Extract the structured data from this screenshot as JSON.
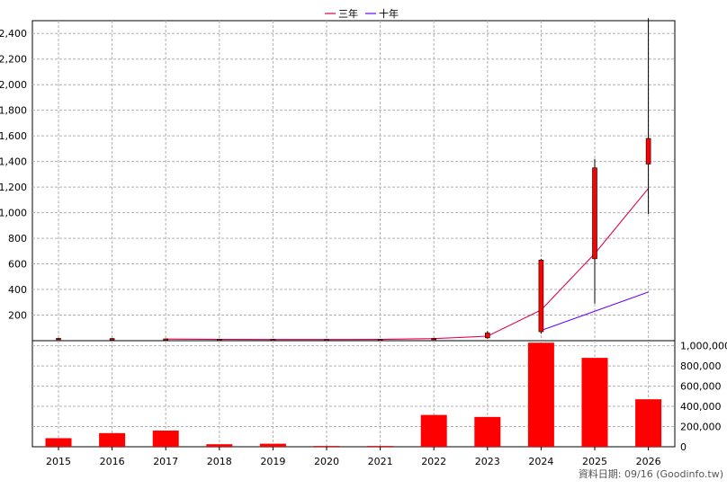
{
  "legend": {
    "items": [
      {
        "label": "三年",
        "color": "#e0004d"
      },
      {
        "label": "十年",
        "color": "#6a00ff"
      }
    ]
  },
  "footer": {
    "text": "資料日期: 09/16  (Goodinfo.tw)"
  },
  "colors": {
    "candle_up": "#ff0000",
    "bar": "#ff0000",
    "grid": "#b0b0b0",
    "wick": "#000000"
  },
  "chart_data": [
    {
      "type": "candlestick",
      "x": [
        "2015",
        "2016",
        "2017",
        "2018",
        "2019",
        "2020",
        "2021",
        "2022",
        "2023",
        "2024",
        "2025",
        "2026"
      ],
      "ylim": [
        0,
        2500
      ],
      "y_ticks": [
        200,
        400,
        600,
        800,
        1000,
        1200,
        1400,
        1600,
        1800,
        2000,
        2200,
        2400
      ],
      "y_tick_labels": [
        "200",
        "400",
        "600",
        "800",
        "1,000",
        "1,200",
        "1,400",
        "1,600",
        "1,800",
        "2,000",
        "2,200",
        "2,400"
      ],
      "ohlc": [
        {
          "x": "2015",
          "open": 15,
          "high": 22,
          "low": 12,
          "close": 18
        },
        {
          "x": "2016",
          "open": 16,
          "high": 20,
          "low": 13,
          "close": 17
        },
        {
          "x": "2017",
          "open": 13,
          "high": 16,
          "low": 11,
          "close": 14
        },
        {
          "x": "2018",
          "open": 10,
          "high": 13,
          "low": 8,
          "close": 11
        },
        {
          "x": "2019",
          "open": 9,
          "high": 12,
          "low": 7,
          "close": 10
        },
        {
          "x": "2020",
          "open": 8,
          "high": 11,
          "low": 6,
          "close": 9
        },
        {
          "x": "2021",
          "open": 9,
          "high": 12,
          "low": 7,
          "close": 10
        },
        {
          "x": "2022",
          "open": 12,
          "high": 22,
          "low": 10,
          "close": 18
        },
        {
          "x": "2023",
          "open": 22,
          "high": 75,
          "low": 15,
          "close": 60
        },
        {
          "x": "2024",
          "open": 70,
          "high": 640,
          "low": 55,
          "close": 630
        },
        {
          "x": "2025",
          "open": 640,
          "high": 1420,
          "low": 290,
          "close": 1350
        },
        {
          "x": "2026",
          "open": 1380,
          "high": 2520,
          "low": 990,
          "close": 1580
        }
      ],
      "series": [
        {
          "name": "三年",
          "x": [
            "2017",
            "2018",
            "2019",
            "2020",
            "2021",
            "2022",
            "2023",
            "2024",
            "2025",
            "2026"
          ],
          "values": [
            13,
            10,
            9,
            9,
            10,
            16,
            35,
            240,
            680,
            1190
          ]
        },
        {
          "name": "十年",
          "x": [
            "2024",
            "2025",
            "2026"
          ],
          "values": [
            80,
            230,
            380
          ]
        }
      ]
    },
    {
      "type": "bar",
      "categories": [
        "2015",
        "2016",
        "2017",
        "2018",
        "2019",
        "2020",
        "2021",
        "2022",
        "2023",
        "2024",
        "2025",
        "2026"
      ],
      "values": [
        85000,
        135000,
        160000,
        25000,
        30000,
        8000,
        8000,
        315000,
        295000,
        1030000,
        880000,
        470000
      ],
      "ylim": [
        0,
        1050000
      ],
      "y_ticks": [
        0,
        200000,
        400000,
        600000,
        800000,
        1000000
      ],
      "y_tick_labels": [
        "0",
        "200,000",
        "400,000",
        "600,000",
        "800,000",
        "1,000,000"
      ]
    }
  ]
}
